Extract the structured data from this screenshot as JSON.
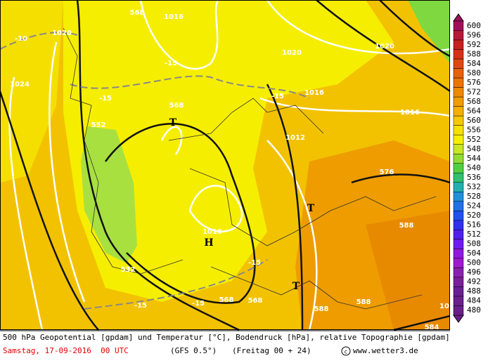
{
  "map": {
    "labels": [
      "568",
      "1016",
      "-10",
      "1020",
      "1020",
      "1020",
      "1024",
      "-15",
      "-15",
      "568",
      "T",
      "-15",
      "1016",
      "1016",
      "552",
      "1012",
      "576",
      "T",
      "588",
      "1016",
      "H",
      "-15",
      "532",
      "T",
      "-15",
      "-15",
      "568",
      "568",
      "584",
      "588",
      "588",
      "10"
    ]
  },
  "colorbar": {
    "levels": [
      600,
      596,
      592,
      588,
      584,
      580,
      576,
      572,
      568,
      564,
      560,
      556,
      552,
      548,
      544,
      540,
      536,
      532,
      528,
      524,
      520,
      516,
      512,
      508,
      504,
      500,
      496,
      492,
      488,
      484,
      480
    ]
  },
  "footer": {
    "line1": "500 hPa Geopotential [gpdam] und Temperatur [°C], Bodendruck [hPa], relative Topographie [gpdam]",
    "date": "Samstag, 17-09-2016  00 UTC",
    "model": "(GFS 0.5°)",
    "run": "(Freitag 00 + 24)",
    "credit": "www.wetter3.de"
  }
}
